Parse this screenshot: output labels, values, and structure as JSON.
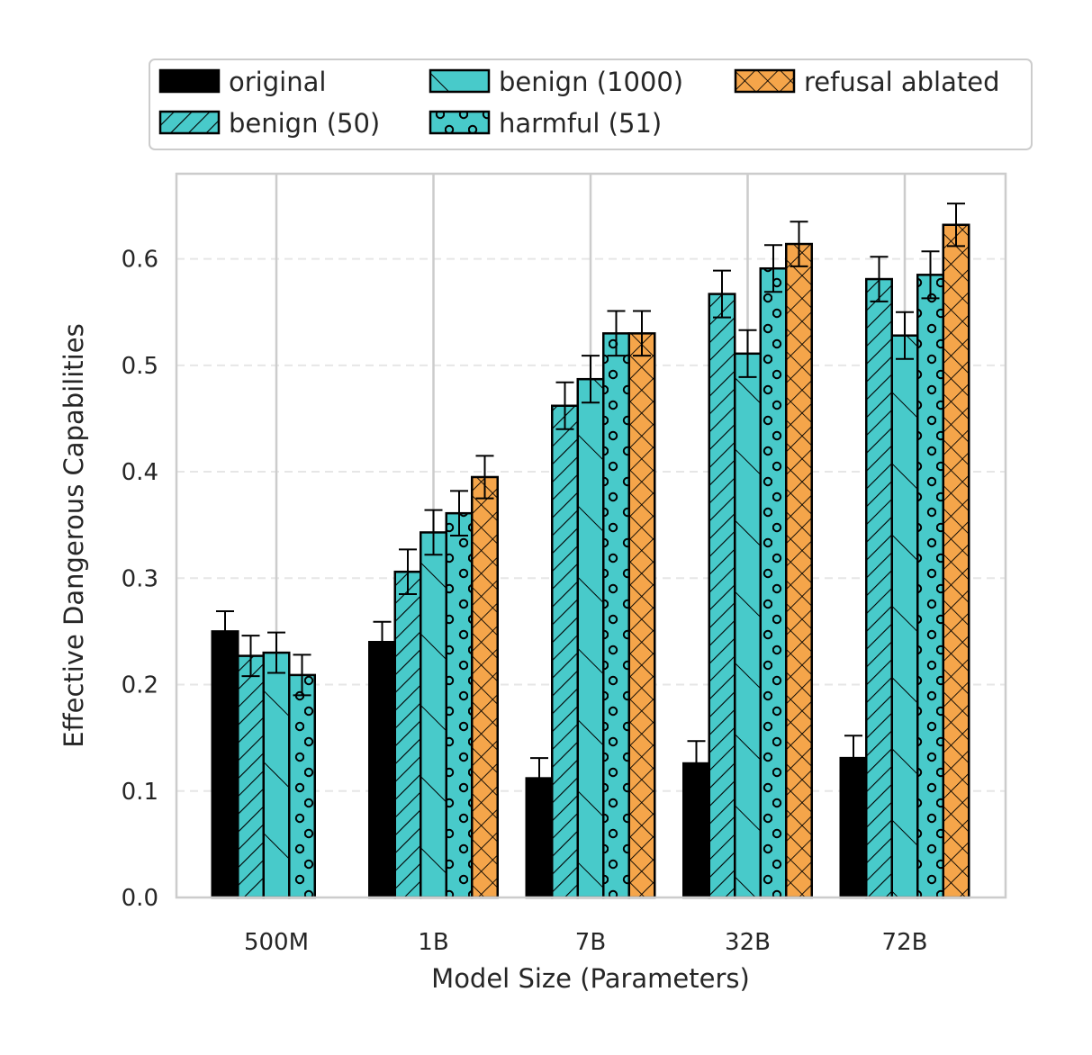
{
  "chart_data": {
    "type": "bar",
    "title": "",
    "xlabel": "Model Size (Parameters)",
    "ylabel": "Effective Dangerous Capabilities",
    "ylim": [
      0,
      0.68
    ],
    "yticks": [
      "0.0",
      "0.1",
      "0.2",
      "0.3",
      "0.4",
      "0.5",
      "0.6"
    ],
    "grid": true,
    "legend_position": "top",
    "categories": [
      "500M",
      "1B",
      "7B",
      "32B",
      "72B"
    ],
    "series": [
      {
        "name": "original",
        "color": "#000000",
        "hatch": "none",
        "values": [
          0.25,
          0.24,
          0.112,
          0.126,
          0.131
        ],
        "errors": [
          0.019,
          0.019,
          0.019,
          0.021,
          0.021
        ]
      },
      {
        "name": "benign (50)",
        "color": "#48CACA",
        "hatch": "diagonal",
        "values": [
          0.227,
          0.306,
          0.462,
          0.567,
          0.581
        ],
        "errors": [
          0.019,
          0.021,
          0.022,
          0.022,
          0.021
        ]
      },
      {
        "name": "benign (1000)",
        "color": "#48CACA",
        "hatch": "backslash",
        "values": [
          0.23,
          0.343,
          0.487,
          0.511,
          0.528
        ],
        "errors": [
          0.019,
          0.021,
          0.022,
          0.022,
          0.022
        ]
      },
      {
        "name": "harmful (51)",
        "color": "#48CACA",
        "hatch": "circles",
        "values": [
          0.209,
          0.361,
          0.53,
          0.591,
          0.585
        ],
        "errors": [
          0.019,
          0.021,
          0.021,
          0.022,
          0.022
        ]
      },
      {
        "name": "refusal ablated",
        "color": "#F5A54A",
        "hatch": "cross",
        "values": [
          null,
          0.395,
          0.53,
          0.614,
          0.632
        ],
        "errors": [
          null,
          0.02,
          0.021,
          0.021,
          0.02
        ]
      }
    ]
  }
}
